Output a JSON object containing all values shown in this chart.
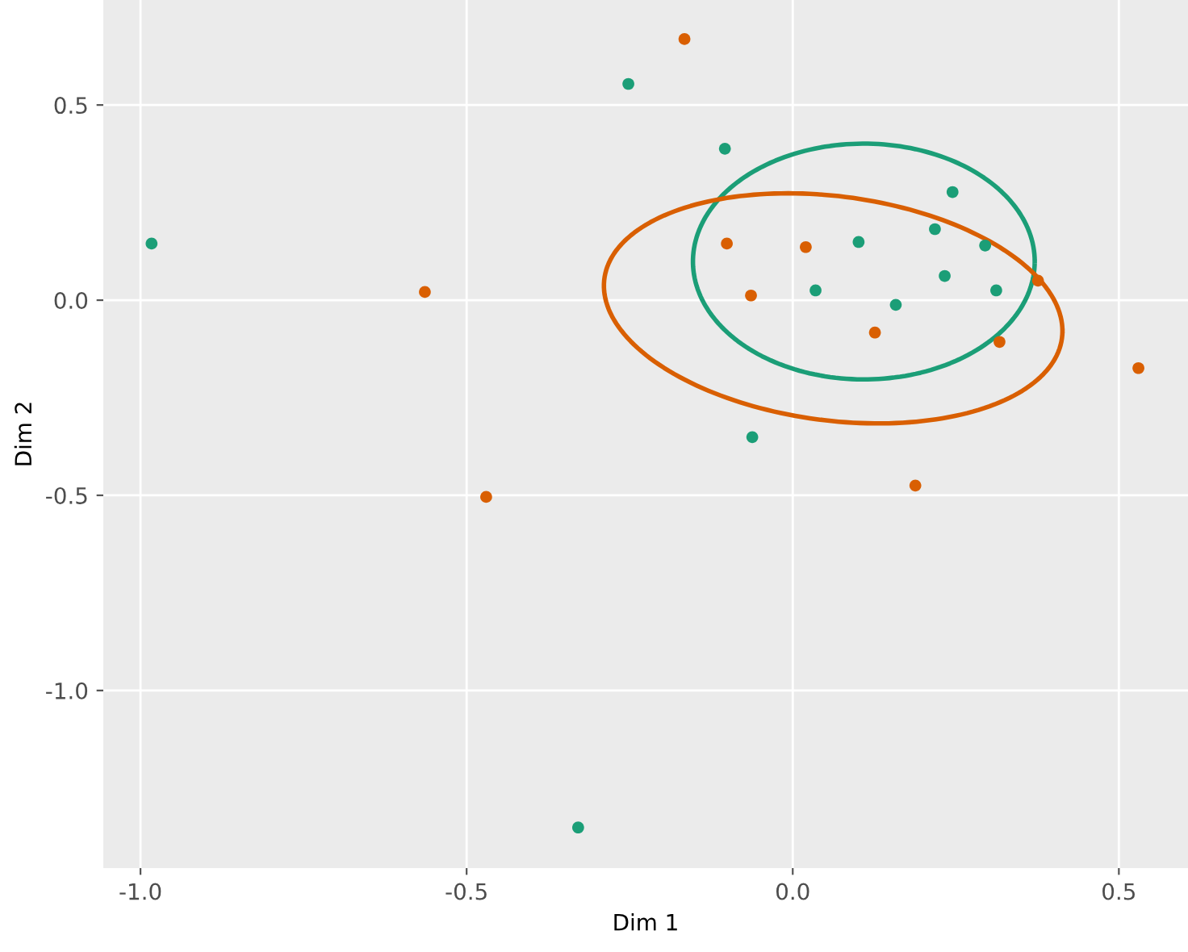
{
  "chart_data": {
    "type": "scatter",
    "xlabel": "Dim 1",
    "ylabel": "Dim 2",
    "xlim": [
      -1.057,
      0.606
    ],
    "ylim": [
      -1.455,
      0.769
    ],
    "xticks": [
      {
        "value": -1.0,
        "label": "-1.0"
      },
      {
        "value": -0.5,
        "label": "-0.5"
      },
      {
        "value": 0.0,
        "label": "0.0"
      },
      {
        "value": 0.5,
        "label": "0.5"
      }
    ],
    "yticks": [
      {
        "value": -1.0,
        "label": "-1.0"
      },
      {
        "value": -0.5,
        "label": "-0.5"
      },
      {
        "value": 0.0,
        "label": "0.0"
      },
      {
        "value": 0.5,
        "label": "0.5"
      }
    ],
    "grid": true,
    "legend": false,
    "series": [
      {
        "marker": "circle",
        "color": "#1b9e77",
        "x": [
          -0.983,
          -0.252,
          -0.104,
          0.245,
          0.101,
          0.218,
          0.295,
          0.035,
          0.158,
          0.233,
          0.312,
          -0.062,
          -0.329
        ],
        "values": [
          0.145,
          0.554,
          0.388,
          0.277,
          0.149,
          0.182,
          0.14,
          0.025,
          -0.012,
          0.062,
          0.025,
          -0.351,
          -1.351
        ]
      },
      {
        "marker": "circle",
        "color": "#d95f02",
        "x": [
          -0.166,
          -0.564,
          -0.101,
          0.02,
          -0.064,
          0.126,
          0.317,
          0.376,
          0.53,
          0.188,
          -0.47
        ],
        "values": [
          0.669,
          0.021,
          0.145,
          0.136,
          0.012,
          -0.083,
          -0.107,
          0.05,
          -0.174,
          -0.475,
          -0.504
        ]
      }
    ]
  }
}
